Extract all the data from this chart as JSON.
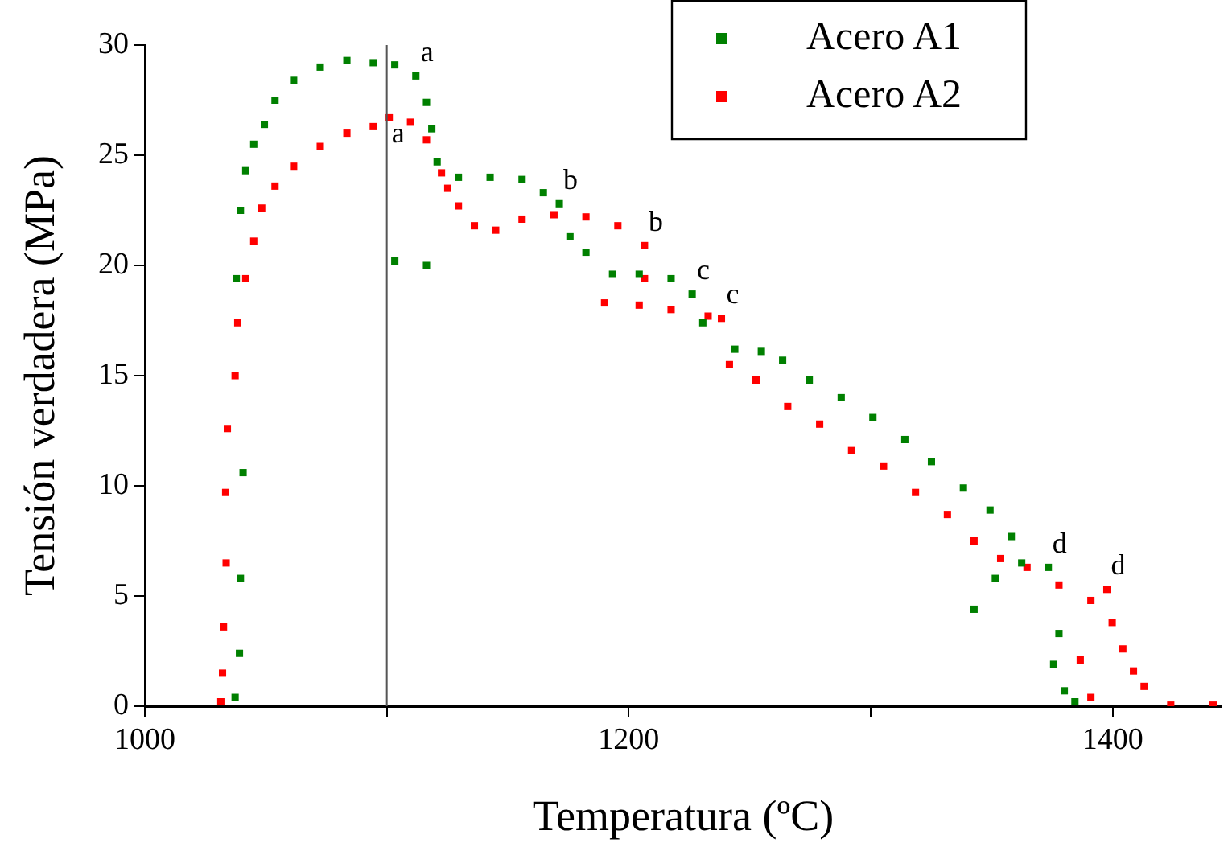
{
  "chart_data": {
    "type": "scatter",
    "xlabel": "Temperatura (ºC)",
    "ylabel": "Tensión verdadera (MPa)",
    "xlim": [
      1000,
      1445
    ],
    "xticks": [
      1000,
      {
        "value": 1100,
        "label": null
      },
      1200,
      {
        "value": 1300,
        "label": null
      },
      1400
    ],
    "ylim": [
      0,
      30
    ],
    "yticks": [
      0,
      5,
      10,
      15,
      20,
      25,
      30
    ],
    "grid": false,
    "legend": "top right",
    "marker": "square",
    "ref_lines": [
      {
        "axis": "x",
        "value": 1100,
        "color": "#555555"
      }
    ],
    "annotations": [
      {
        "text": "a",
        "x": 1112,
        "y": 28.6
      },
      {
        "text": "a",
        "x": 1100,
        "y": 24.9
      },
      {
        "text": "b",
        "x": 1171.3,
        "y": 22.8
      },
      {
        "text": "b",
        "x": 1206.5,
        "y": 20.9
      },
      {
        "text": "c",
        "x": 1226.2,
        "y": 18.7
      },
      {
        "text": "c",
        "x": 1238.3,
        "y": 17.6
      },
      {
        "text": "d",
        "x": 1373.4,
        "y": 6.3
      },
      {
        "text": "d",
        "x": 1397.6,
        "y": 5.3
      }
    ],
    "series": [
      {
        "name": "Acero A1",
        "color": "#008000",
        "x": [
          1037.3,
          1039.1,
          1039.5,
          1040.6,
          1037.8,
          1039.5,
          1041.7,
          1045,
          1049.4,
          1053.8,
          1061.5,
          1072.5,
          1083.5,
          1094.4,
          1103.3,
          1112,
          1116.4,
          1118.6,
          1120.8,
          1103.3,
          1116.4,
          1129.6,
          1142.7,
          1155.9,
          1164.7,
          1171.3,
          1175.7,
          1182.3,
          1193.3,
          1204.3,
          1217.5,
          1226.2,
          1230.6,
          1243.8,
          1254.8,
          1263.6,
          1274.6,
          1287.8,
          1300.9,
          1314.1,
          1325.1,
          1338.3,
          1349.3,
          1358.1,
          1351.5,
          1342.7,
          1362.4,
          1373.4,
          1377.8,
          1375.6,
          1380,
          1384.4
        ],
        "values": [
          0.4,
          2.4,
          5.8,
          10.6,
          19.4,
          22.5,
          24.3,
          25.5,
          26.4,
          27.5,
          28.4,
          29.0,
          29.3,
          29.2,
          29.1,
          28.6,
          27.4,
          26.2,
          24.7,
          20.2,
          20.0,
          24.0,
          24.0,
          23.9,
          23.3,
          22.8,
          21.3,
          20.6,
          19.6,
          19.6,
          19.4,
          18.7,
          17.4,
          16.2,
          16.1,
          15.7,
          14.8,
          14.0,
          13.1,
          12.1,
          11.1,
          9.9,
          8.9,
          7.7,
          5.8,
          4.4,
          6.5,
          6.3,
          3.3,
          1.9,
          0.7,
          0.2
        ]
      },
      {
        "name": "Acero A2",
        "color": "#ff0000",
        "x": [
          1031.4,
          1032.1,
          1032.5,
          1033.6,
          1033.4,
          1034.1,
          1037.3,
          1038.4,
          1041.7,
          1045,
          1048.3,
          1053.8,
          1061.5,
          1072.5,
          1083.5,
          1094.4,
          1101,
          1109.8,
          1116.4,
          1122.6,
          1125.2,
          1129.6,
          1136.2,
          1145,
          1155.9,
          1169.1,
          1182.3,
          1195.5,
          1206.5,
          1206.5,
          1204.3,
          1190,
          1217.5,
          1232.8,
          1238.3,
          1241.6,
          1252.6,
          1265.7,
          1278.9,
          1292.1,
          1305.3,
          1318.5,
          1331.7,
          1342.7,
          1353.7,
          1364.6,
          1377.8,
          1391,
          1397.6,
          1399.8,
          1404.2,
          1408.6,
          1413,
          1386.6,
          1391,
          1424,
          1441.5
        ],
        "values": [
          0.2,
          1.5,
          3.6,
          6.5,
          9.7,
          12.6,
          15.0,
          17.4,
          19.4,
          21.1,
          22.6,
          23.6,
          24.5,
          25.4,
          26.0,
          26.3,
          26.7,
          26.5,
          25.7,
          24.2,
          23.5,
          22.7,
          21.8,
          21.6,
          22.1,
          22.3,
          22.2,
          21.8,
          20.9,
          19.4,
          18.2,
          18.3,
          18.0,
          17.7,
          17.6,
          15.5,
          14.8,
          13.6,
          12.8,
          11.6,
          10.9,
          9.7,
          8.7,
          7.5,
          6.7,
          6.3,
          5.5,
          4.8,
          5.3,
          3.8,
          2.6,
          1.6,
          0.9,
          2.1,
          0.4,
          0.05,
          0.05
        ]
      }
    ]
  }
}
